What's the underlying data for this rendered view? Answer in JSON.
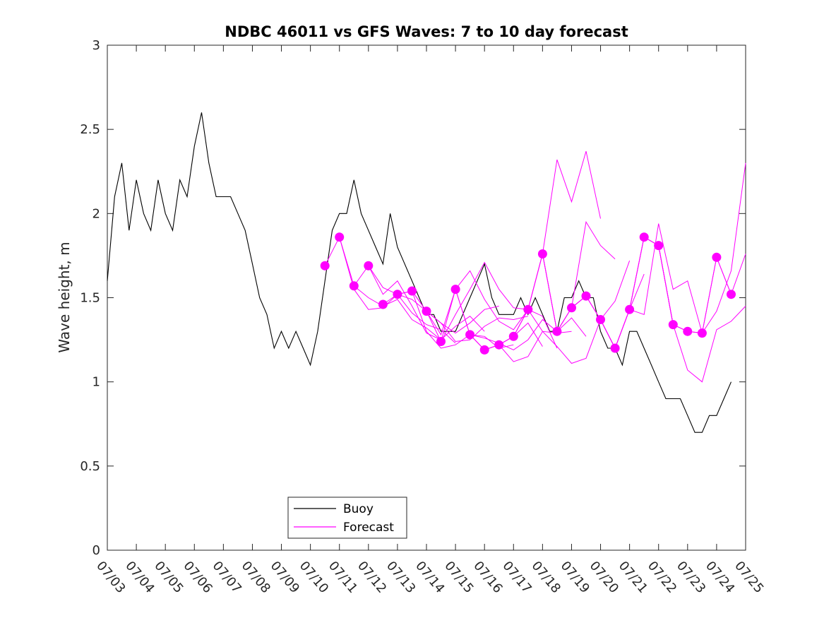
{
  "chart_data": {
    "type": "line",
    "title": "NDBC 46011 vs GFS Waves: 7 to 10 day forecast",
    "xlabel": "",
    "ylabel": "Wave height, m",
    "x_unit": "date (MM/DD)",
    "xlim": [
      "07/03",
      "07/25"
    ],
    "ylim": [
      0,
      3
    ],
    "x_ticks": [
      "07/03",
      "07/04",
      "07/05",
      "07/06",
      "07/07",
      "07/08",
      "07/09",
      "07/10",
      "07/11",
      "07/12",
      "07/13",
      "07/14",
      "07/15",
      "07/16",
      "07/17",
      "07/18",
      "07/19",
      "07/20",
      "07/21",
      "07/22",
      "07/23",
      "07/24",
      "07/25"
    ],
    "y_ticks": [
      "0",
      "0.5",
      "1",
      "1.5",
      "2",
      "2.5",
      "3"
    ],
    "grid": false,
    "legend_position": "bottom-left",
    "colors": {
      "buoy": "#000000",
      "forecast": "#ff00ff",
      "axes": "#262626"
    },
    "series": [
      {
        "name": "Buoy",
        "style": "line",
        "x": [
          "07/03 00:00",
          "07/03 06:00",
          "07/03 12:00",
          "07/03 18:00",
          "07/04 00:00",
          "07/04 06:00",
          "07/04 12:00",
          "07/04 18:00",
          "07/05 00:00",
          "07/05 06:00",
          "07/05 12:00",
          "07/05 18:00",
          "07/06 00:00",
          "07/06 06:00",
          "07/06 12:00",
          "07/06 18:00",
          "07/07 00:00",
          "07/07 06:00",
          "07/07 12:00",
          "07/07 18:00",
          "07/08 00:00",
          "07/08 06:00",
          "07/08 12:00",
          "07/08 18:00",
          "07/09 00:00",
          "07/09 06:00",
          "07/09 12:00",
          "07/09 18:00",
          "07/10 00:00",
          "07/10 06:00",
          "07/10 12:00",
          "07/10 18:00",
          "07/11 00:00",
          "07/11 06:00",
          "07/11 12:00",
          "07/11 18:00",
          "07/12 00:00",
          "07/12 06:00",
          "07/12 12:00",
          "07/12 18:00",
          "07/13 00:00",
          "07/13 06:00",
          "07/13 12:00",
          "07/13 18:00",
          "07/14 00:00",
          "07/14 06:00",
          "07/14 12:00",
          "07/14 18:00",
          "07/15 00:00",
          "07/15 06:00",
          "07/15 12:00",
          "07/15 18:00",
          "07/16 00:00",
          "07/16 06:00",
          "07/16 12:00",
          "07/16 18:00",
          "07/17 00:00",
          "07/17 06:00",
          "07/17 12:00",
          "07/17 18:00",
          "07/18 00:00",
          "07/18 06:00",
          "07/18 12:00",
          "07/18 18:00",
          "07/19 00:00",
          "07/19 06:00",
          "07/19 12:00",
          "07/19 18:00",
          "07/20 00:00",
          "07/20 06:00",
          "07/20 12:00",
          "07/20 18:00",
          "07/21 00:00",
          "07/21 06:00",
          "07/21 12:00",
          "07/21 18:00",
          "07/22 00:00",
          "07/22 06:00",
          "07/22 12:00",
          "07/22 18:00",
          "07/23 00:00",
          "07/23 06:00",
          "07/23 12:00",
          "07/23 18:00",
          "07/24 00:00",
          "07/24 06:00",
          "07/24 12:00"
        ],
        "values": [
          1.6,
          2.1,
          2.3,
          1.9,
          2.2,
          2.0,
          1.9,
          2.2,
          2.0,
          1.9,
          2.2,
          2.1,
          2.4,
          2.6,
          2.3,
          2.1,
          2.1,
          2.1,
          2.0,
          1.9,
          1.7,
          1.5,
          1.4,
          1.2,
          1.3,
          1.2,
          1.3,
          1.2,
          1.1,
          1.3,
          1.6,
          1.9,
          2.0,
          2.0,
          2.2,
          2.0,
          1.9,
          1.8,
          1.7,
          2.0,
          1.8,
          1.7,
          1.6,
          1.5,
          1.4,
          1.4,
          1.3,
          1.3,
          1.3,
          1.4,
          1.5,
          1.6,
          1.7,
          1.5,
          1.4,
          1.4,
          1.4,
          1.5,
          1.4,
          1.5,
          1.4,
          1.3,
          1.3,
          1.5,
          1.5,
          1.6,
          1.5,
          1.5,
          1.3,
          1.2,
          1.2,
          1.1,
          1.3,
          1.3,
          1.2,
          1.1,
          1.0,
          0.9,
          0.9,
          0.9,
          0.8,
          0.7,
          0.7,
          0.8,
          0.8,
          0.9,
          1.0
        ]
      },
      {
        "name": "Forecast",
        "style": "line",
        "lines": [
          {
            "x": [
              "07/10 12:00",
              "07/11 00:00",
              "07/11 12:00",
              "07/12 00:00",
              "07/12 12:00",
              "07/13 00:00",
              "07/13 12:00",
              "07/14 00:00",
              "07/14 12:00"
            ],
            "values": [
              1.69,
              1.86,
              1.57,
              1.5,
              1.45,
              1.49,
              1.37,
              1.32,
              1.25
            ]
          },
          {
            "x": [
              "07/11 00:00",
              "07/11 12:00",
              "07/12 00:00",
              "07/12 12:00",
              "07/13 00:00",
              "07/13 12:00",
              "07/14 00:00",
              "07/14 12:00",
              "07/15 00:00"
            ],
            "values": [
              1.86,
              1.55,
              1.43,
              1.44,
              1.52,
              1.41,
              1.34,
              1.31,
              1.23
            ]
          },
          {
            "x": [
              "07/11 12:00",
              "07/12 00:00",
              "07/12 12:00",
              "07/13 00:00",
              "07/13 12:00",
              "07/14 00:00",
              "07/14 12:00",
              "07/15 00:00",
              "07/15 12:00",
              "07/16 00:00"
            ],
            "values": [
              1.57,
              1.69,
              1.52,
              1.6,
              1.45,
              1.29,
              1.25,
              1.33,
              1.39,
              1.3
            ]
          },
          {
            "x": [
              "07/12 00:00",
              "07/12 12:00",
              "07/13 00:00",
              "07/13 12:00",
              "07/14 00:00",
              "07/14 12:00",
              "07/15 00:00",
              "07/15 12:00",
              "07/16 00:00",
              "07/16 12:00"
            ],
            "values": [
              1.69,
              1.56,
              1.52,
              1.49,
              1.42,
              1.35,
              1.29,
              1.35,
              1.43,
              1.45
            ]
          },
          {
            "x": [
              "07/12 12:00",
              "07/13 00:00",
              "07/13 12:00",
              "07/14 00:00",
              "07/14 12:00",
              "07/15 00:00",
              "07/15 12:00",
              "07/16 00:00",
              "07/16 12:00",
              "07/17 00:00"
            ],
            "values": [
              1.46,
              1.52,
              1.54,
              1.3,
              1.2,
              1.22,
              1.28,
              1.27,
              1.2,
              1.22
            ]
          },
          {
            "x": [
              "07/13 00:00",
              "07/13 12:00",
              "07/14 00:00",
              "07/14 12:00",
              "07/15 00:00",
              "07/15 12:00",
              "07/16 00:00",
              "07/16 12:00",
              "07/17 00:00",
              "07/17 12:00"
            ],
            "values": [
              1.52,
              1.54,
              1.42,
              1.35,
              1.24,
              1.25,
              1.33,
              1.38,
              1.37,
              1.39
            ]
          },
          {
            "x": [
              "07/13 12:00",
              "07/14 00:00",
              "07/14 12:00",
              "07/15 00:00",
              "07/15 12:00",
              "07/16 00:00",
              "07/16 12:00",
              "07/17 00:00",
              "07/17 12:00",
              "07/18 00:00"
            ],
            "values": [
              1.54,
              1.42,
              1.28,
              1.55,
              1.28,
              1.19,
              1.22,
              1.27,
              1.35,
              1.21
            ]
          },
          {
            "x": [
              "07/14 00:00",
              "07/14 12:00",
              "07/15 00:00",
              "07/15 12:00",
              "07/16 00:00",
              "07/16 12:00",
              "07/17 00:00",
              "07/17 12:00",
              "07/18 00:00",
              "07/18 12:00"
            ],
            "values": [
              1.42,
              1.24,
              1.4,
              1.55,
              1.71,
              1.55,
              1.44,
              1.43,
              1.39,
              1.2
            ]
          },
          {
            "x": [
              "07/14 12:00",
              "07/15 00:00",
              "07/15 12:00",
              "07/16 00:00",
              "07/16 12:00",
              "07/17 00:00",
              "07/17 12:00",
              "07/18 00:00",
              "07/18 12:00",
              "07/19 00:00"
            ],
            "values": [
              1.24,
              1.55,
              1.66,
              1.49,
              1.36,
              1.31,
              1.43,
              1.3,
              1.29,
              1.3
            ]
          },
          {
            "x": [
              "07/15 00:00",
              "07/15 12:00",
              "07/16 00:00",
              "07/16 12:00",
              "07/17 00:00",
              "07/17 12:00",
              "07/18 00:00",
              "07/18 12:00",
              "07/19 00:00",
              "07/19 12:00"
            ],
            "values": [
              1.55,
              1.28,
              1.26,
              1.23,
              1.19,
              1.25,
              1.37,
              1.3,
              1.38,
              1.27
            ]
          },
          {
            "x": [
              "07/15 12:00",
              "07/16 00:00",
              "07/16 12:00",
              "07/17 00:00",
              "07/17 12:00",
              "07/18 00:00",
              "07/18 12:00",
              "07/19 00:00",
              "07/19 12:00",
              "07/20 00:00"
            ],
            "values": [
              1.28,
              1.19,
              1.22,
              1.27,
              1.43,
              1.76,
              2.32,
              2.07,
              2.37,
              1.97
            ]
          },
          {
            "x": [
              "07/16 00:00",
              "07/16 12:00",
              "07/17 00:00",
              "07/17 12:00",
              "07/18 00:00",
              "07/18 12:00",
              "07/19 00:00",
              "07/19 12:00",
              "07/20 00:00",
              "07/20 12:00"
            ],
            "values": [
              1.19,
              1.22,
              1.27,
              1.43,
              1.76,
              1.3,
              1.44,
              1.95,
              1.81,
              1.73
            ]
          },
          {
            "x": [
              "07/16 12:00",
              "07/17 00:00",
              "07/17 12:00",
              "07/18 00:00",
              "07/18 12:00",
              "07/19 00:00",
              "07/19 12:00",
              "07/20 00:00",
              "07/20 12:00",
              "07/21 00:00"
            ],
            "values": [
              1.22,
              1.12,
              1.15,
              1.3,
              1.21,
              1.11,
              1.14,
              1.37,
              1.48,
              1.72
            ]
          },
          {
            "x": [
              "07/17 00:00",
              "07/17 12:00",
              "07/18 00:00",
              "07/18 12:00",
              "07/19 00:00",
              "07/19 12:00",
              "07/20 00:00",
              "07/20 12:00",
              "07/21 00:00",
              "07/21 12:00"
            ],
            "values": [
              1.27,
              1.43,
              1.76,
              1.3,
              1.44,
              1.51,
              1.37,
              1.2,
              1.43,
              1.64
            ]
          },
          {
            "x": [
              "07/18 00:00",
              "07/18 12:00",
              "07/19 00:00",
              "07/19 12:00",
              "07/20 00:00",
              "07/20 12:00",
              "07/21 00:00",
              "07/21 12:00",
              "07/22 00:00",
              "07/22 12:00"
            ],
            "values": [
              1.76,
              1.3,
              1.44,
              1.51,
              1.37,
              1.2,
              1.43,
              1.86,
              1.81,
              1.34
            ]
          },
          {
            "x": [
              "07/19 00:00",
              "07/19 12:00",
              "07/20 00:00",
              "07/20 12:00",
              "07/21 00:00",
              "07/21 12:00",
              "07/22 00:00",
              "07/22 12:00",
              "07/23 00:00",
              "07/23 12:00"
            ],
            "values": [
              1.44,
              1.51,
              1.37,
              1.2,
              1.43,
              1.86,
              1.81,
              1.34,
              1.3,
              1.29
            ]
          },
          {
            "x": [
              "07/20 00:00",
              "07/20 12:00",
              "07/21 00:00",
              "07/21 12:00",
              "07/22 00:00",
              "07/22 12:00",
              "07/23 00:00",
              "07/23 12:00",
              "07/24 00:00",
              "07/24 12:00"
            ],
            "values": [
              1.37,
              1.2,
              1.43,
              1.86,
              1.81,
              1.34,
              1.3,
              1.29,
              1.74,
              1.52
            ]
          },
          {
            "x": [
              "07/21 00:00",
              "07/21 12:00",
              "07/22 00:00",
              "07/22 12:00",
              "07/23 00:00",
              "07/23 12:00",
              "07/24 00:00",
              "07/24 12:00",
              "07/25 00:00"
            ],
            "values": [
              1.43,
              1.4,
              1.94,
              1.55,
              1.6,
              1.29,
              1.42,
              1.66,
              2.3
            ]
          },
          {
            "x": [
              "07/22 00:00",
              "07/22 12:00",
              "07/23 00:00",
              "07/23 12:00",
              "07/24 00:00",
              "07/24 12:00",
              "07/25 00:00"
            ],
            "values": [
              1.81,
              1.34,
              1.07,
              1.0,
              1.31,
              1.36,
              1.45
            ]
          },
          {
            "x": [
              "07/23 00:00",
              "07/23 12:00",
              "07/24 00:00",
              "07/24 12:00",
              "07/25 00:00"
            ],
            "values": [
              1.3,
              1.29,
              1.74,
              1.52,
              1.76
            ]
          }
        ]
      },
      {
        "name": "Forecast",
        "style": "markers",
        "x": [
          "07/10 12:00",
          "07/11 00:00",
          "07/11 12:00",
          "07/12 00:00",
          "07/12 12:00",
          "07/13 00:00",
          "07/13 12:00",
          "07/14 00:00",
          "07/14 12:00",
          "07/15 00:00",
          "07/15 12:00",
          "07/16 00:00",
          "07/16 12:00",
          "07/17 00:00",
          "07/17 12:00",
          "07/18 00:00",
          "07/18 12:00",
          "07/19 00:00",
          "07/19 12:00",
          "07/20 00:00",
          "07/20 12:00",
          "07/21 00:00",
          "07/21 12:00",
          "07/22 00:00",
          "07/22 12:00",
          "07/23 00:00",
          "07/23 12:00",
          "07/24 00:00",
          "07/24 12:00"
        ],
        "values": [
          1.69,
          1.86,
          1.57,
          1.69,
          1.46,
          1.52,
          1.54,
          1.42,
          1.24,
          1.55,
          1.28,
          1.19,
          1.22,
          1.27,
          1.43,
          1.76,
          1.3,
          1.44,
          1.51,
          1.37,
          1.2,
          1.43,
          1.86,
          1.81,
          1.34,
          1.3,
          1.29,
          1.74,
          1.52
        ]
      }
    ],
    "legend": [
      {
        "label": "Buoy",
        "color": "#000000"
      },
      {
        "label": "Forecast",
        "color": "#ff00ff"
      }
    ]
  }
}
